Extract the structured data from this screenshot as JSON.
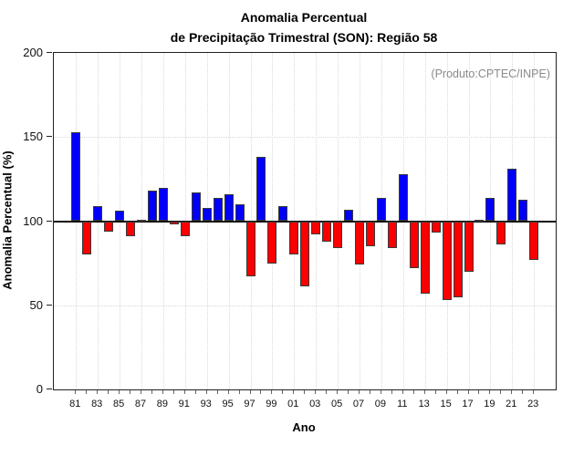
{
  "header": {
    "title_line1": "Anomalia Percentual",
    "title_line2": "de Precipitação Trimestral (SON): Região 58"
  },
  "plot": {
    "annotation": "(Produto:CPTEC/INPE)"
  },
  "axes": {
    "ylabel": "Anomalia Percentual (%)",
    "xlabel": "Ano",
    "ytick_labels": [
      "0",
      "50",
      "100",
      "150",
      "200"
    ],
    "xtick_labels": [
      "81",
      "83",
      "85",
      "87",
      "89",
      "91",
      "93",
      "95",
      "97",
      "99",
      "01",
      "03",
      "05",
      "07",
      "09",
      "11",
      "13",
      "15",
      "17",
      "19",
      "21",
      "23"
    ]
  },
  "chart_data": {
    "type": "bar",
    "title": "Anomalia Percentual de Precipitação Trimestral (SON): Região 58",
    "xlabel": "Ano",
    "ylabel": "Anomalia Percentual (%)",
    "ylim": [
      0,
      200
    ],
    "yticks": [
      0,
      50,
      100,
      150,
      200
    ],
    "baseline": 100,
    "grid": "vertical dotted lines at labeled years; horizontal dotted lines at 50 and 150; solid black line at 100",
    "legend_position": "none",
    "annotation": "(Produto:CPTEC/INPE)",
    "colors": {
      "above_baseline": "#0000fa",
      "below_baseline": "#fa0000",
      "bar_border": "#3a3a3a",
      "annotation_gray": "#8a8a8a",
      "grid_gray": "#d9d9d9"
    },
    "years": [
      1981,
      1982,
      1983,
      1984,
      1985,
      1986,
      1987,
      1988,
      1989,
      1990,
      1991,
      1992,
      1993,
      1994,
      1995,
      1996,
      1997,
      1998,
      1999,
      2000,
      2001,
      2002,
      2003,
      2004,
      2005,
      2006,
      2007,
      2008,
      2009,
      2010,
      2011,
      2012,
      2013,
      2014,
      2015,
      2016,
      2017,
      2018,
      2019,
      2020,
      2021,
      2022,
      2023
    ],
    "values": [
      153,
      80,
      109,
      94,
      106,
      91,
      101,
      118,
      120,
      98,
      91,
      117,
      108,
      114,
      116,
      110,
      67,
      138,
      75,
      109,
      80,
      61,
      92,
      88,
      84,
      107,
      74,
      85,
      114,
      84,
      128,
      72,
      57,
      93,
      53,
      55,
      70,
      101,
      114,
      86,
      131,
      113,
      77
    ]
  }
}
